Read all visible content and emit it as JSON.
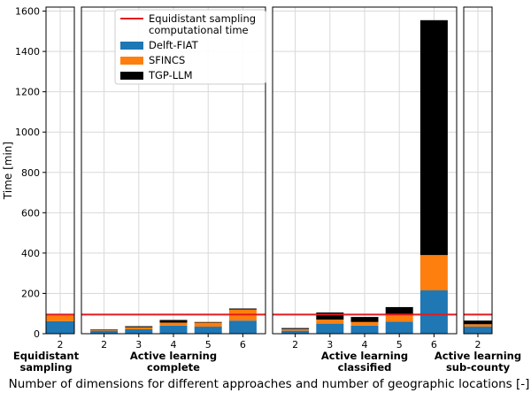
{
  "chart_data": {
    "type": "bar",
    "stacked": true,
    "ylabel": "Time [min]",
    "xlabel": "Number of dimensions for different approaches and number of geographic locations [-]",
    "ylim": [
      0,
      1620
    ],
    "yticks": [
      0,
      200,
      400,
      600,
      800,
      1000,
      1200,
      1400,
      1600
    ],
    "grid": true,
    "legend_position": "top",
    "reference_line": {
      "name": "Equidistant sampling computational time",
      "value": 95,
      "color": "#e31a1c"
    },
    "series_meta": [
      {
        "name": "Delft-FIAT",
        "color": "#1f77b4"
      },
      {
        "name": "SFINCS",
        "color": "#ff7f0e"
      },
      {
        "name": "TGP-LLM",
        "color": "#000000"
      }
    ],
    "legend": {
      "line_label_1": "Equidistant sampling",
      "line_label_2": "computational time",
      "series_labels": [
        "Delft-FIAT",
        "SFINCS",
        "TGP-LLM"
      ]
    },
    "panels": [
      {
        "label": "Equidistant\nsampling",
        "categories": [
          "2"
        ],
        "series": [
          {
            "name": "Delft-FIAT",
            "values": [
              62
            ]
          },
          {
            "name": "SFINCS",
            "values": [
              35
            ]
          },
          {
            "name": "TGP-LLM",
            "values": [
              0
            ]
          }
        ]
      },
      {
        "label": "Active learning\ncomplete",
        "categories": [
          "2",
          "3",
          "4",
          "5",
          "6"
        ],
        "series": [
          {
            "name": "Delft-FIAT",
            "values": [
              15,
              22,
              40,
              35,
              65
            ]
          },
          {
            "name": "SFINCS",
            "values": [
              5,
              10,
              15,
              20,
              55
            ]
          },
          {
            "name": "TGP-LLM",
            "values": [
              2,
              5,
              13,
              3,
              5
            ]
          }
        ]
      },
      {
        "label": "Active learning\nclassified",
        "categories": [
          "2",
          "3",
          "4",
          "5",
          "6"
        ],
        "series": [
          {
            "name": "Delft-FIAT",
            "values": [
              15,
              50,
              40,
              60,
              215
            ]
          },
          {
            "name": "SFINCS",
            "values": [
              8,
              20,
              18,
              35,
              175
            ]
          },
          {
            "name": "TGP-LLM",
            "values": [
              5,
              35,
              25,
              37,
              1165
            ]
          }
        ]
      },
      {
        "label": "Active learning\nsub-county",
        "categories": [
          "2"
        ],
        "series": [
          {
            "name": "Delft-FIAT",
            "values": [
              35
            ]
          },
          {
            "name": "SFINCS",
            "values": [
              12
            ]
          },
          {
            "name": "TGP-LLM",
            "values": [
              18
            ]
          }
        ]
      }
    ]
  }
}
